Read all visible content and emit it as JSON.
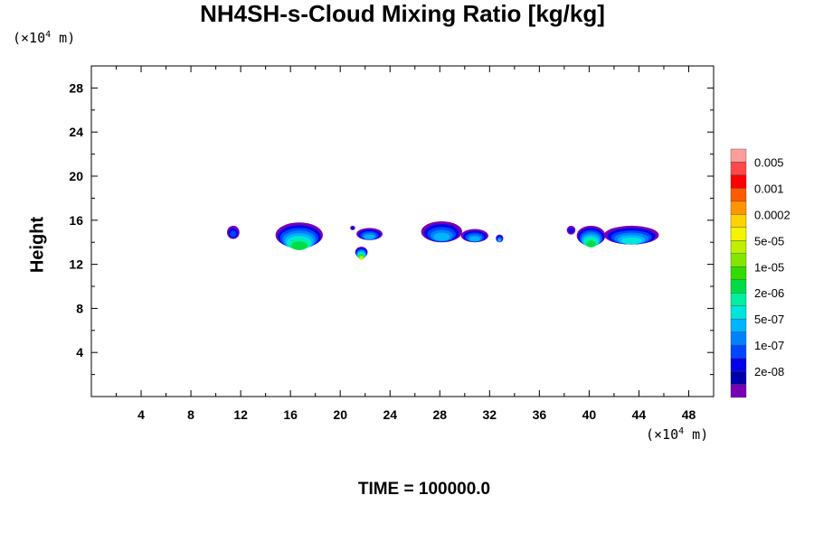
{
  "title": "NH4SH-s-Cloud Mixing Ratio [kg/kg]",
  "y_unit": {
    "prefix": "(×10",
    "exp": "4",
    "suffix": " m)"
  },
  "x_unit": {
    "prefix": "(×10",
    "exp": "4",
    "suffix": " m)"
  },
  "time_label": "TIME = 100000.0",
  "chart_data": {
    "type": "heatmap",
    "ylabel": "Height",
    "xlabel": "",
    "xlim": [
      0,
      50
    ],
    "ylim": [
      0,
      30
    ],
    "xticks": [
      4,
      8,
      12,
      16,
      20,
      24,
      28,
      32,
      36,
      40,
      44,
      48
    ],
    "yticks": [
      4,
      8,
      12,
      16,
      20,
      24,
      28
    ],
    "grid": false,
    "colorbar": {
      "labels": [
        "0.005",
        "0.001",
        "0.0002",
        "5e-05",
        "1e-05",
        "2e-06",
        "5e-07",
        "1e-07",
        "2e-08"
      ],
      "colors_top_to_bottom": [
        "#ff9d9d",
        "#ff4848",
        "#ff0000",
        "#ff5a00",
        "#ff9600",
        "#ffd200",
        "#f4f400",
        "#bef000",
        "#82e600",
        "#32dc00",
        "#00dc46",
        "#00f0a0",
        "#00e6dc",
        "#00b4ff",
        "#0082ff",
        "#0046ff",
        "#0000ee",
        "#0000aa",
        "#7800b4"
      ]
    },
    "clouds": [
      {
        "x": [
          10.9,
          11.9
        ],
        "y": [
          14.3,
          15.5
        ],
        "max_level": "1e-07"
      },
      {
        "x": [
          14.8,
          18.6
        ],
        "y": [
          13.5,
          15.8
        ],
        "max_level": "1e-05"
      },
      {
        "x": [
          20.8,
          21.2
        ],
        "y": [
          15.1,
          15.5
        ],
        "max_level": "2e-08"
      },
      {
        "x": [
          21.3,
          23.4
        ],
        "y": [
          14.2,
          15.3
        ],
        "max_level": "5e-07"
      },
      {
        "x": [
          21.2,
          22.2
        ],
        "y": [
          12.6,
          13.6
        ],
        "max_level": "5e-05"
      },
      {
        "x": [
          26.5,
          29.8
        ],
        "y": [
          14.0,
          15.9
        ],
        "max_level": "5e-07"
      },
      {
        "x": [
          29.7,
          31.9
        ],
        "y": [
          14.0,
          15.2
        ],
        "max_level": "5e-07"
      },
      {
        "x": [
          32.5,
          33.1
        ],
        "y": [
          14.0,
          14.7
        ],
        "max_level": "5e-07"
      },
      {
        "x": [
          38.2,
          38.9
        ],
        "y": [
          14.7,
          15.5
        ],
        "max_level": "2e-08"
      },
      {
        "x": [
          39.0,
          41.3
        ],
        "y": [
          13.7,
          15.5
        ],
        "max_level": "1e-05"
      },
      {
        "x": [
          41.2,
          45.6
        ],
        "y": [
          13.8,
          15.5
        ],
        "max_level": "2e-06"
      }
    ]
  }
}
